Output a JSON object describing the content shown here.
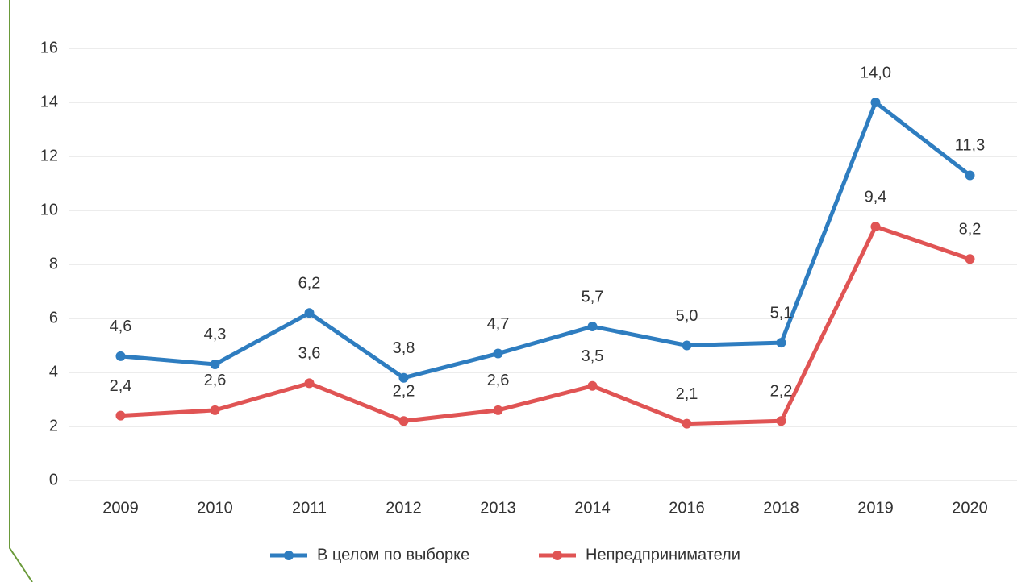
{
  "chart_data": {
    "type": "line",
    "categories": [
      "2009",
      "2010",
      "2011",
      "2012",
      "2013",
      "2014",
      "2016",
      "2018",
      "2019",
      "2020"
    ],
    "series": [
      {
        "name": "В целом по выборке",
        "color": "#2e7dc0",
        "values": [
          4.6,
          4.3,
          6.2,
          3.8,
          4.7,
          5.7,
          5.0,
          5.1,
          14.0,
          11.3
        ],
        "value_labels": [
          "4,6",
          "4,3",
          "6,2",
          "3,8",
          "4,7",
          "5,7",
          "5,0",
          "5,1",
          "14,0",
          "11,3"
        ]
      },
      {
        "name": "Непредприниматели",
        "color": "#e05454",
        "values": [
          2.4,
          2.6,
          3.6,
          2.2,
          2.6,
          3.5,
          2.1,
          2.2,
          9.4,
          8.2
        ],
        "value_labels": [
          "2,4",
          "2,6",
          "3,6",
          "2,2",
          "2,6",
          "3,5",
          "2,1",
          "2,2",
          "9,4",
          "8,2"
        ]
      }
    ],
    "ylim": [
      0,
      16
    ],
    "yticks": [
      0,
      2,
      4,
      6,
      8,
      10,
      12,
      14,
      16
    ],
    "grid": true,
    "legend": "bottom"
  }
}
